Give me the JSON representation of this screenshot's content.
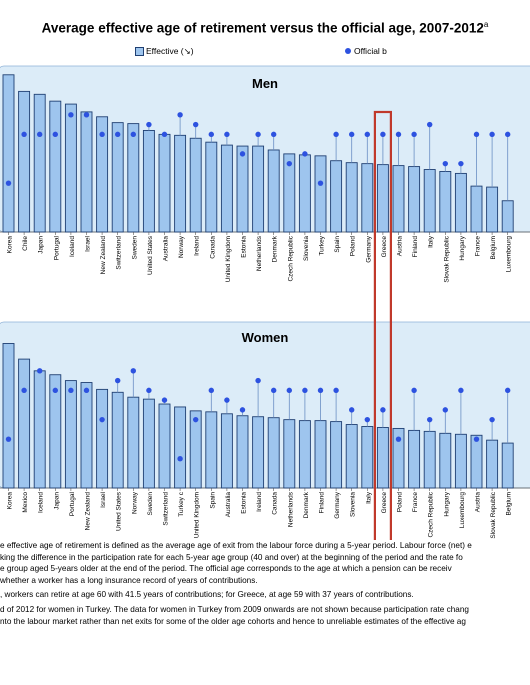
{
  "title": "Average effective age of retirement versus the official age, 2007-2012",
  "title_sup": "a",
  "legend": {
    "effective": "Effective (↘)",
    "official": "Official b"
  },
  "colors": {
    "bar": "#9ec5ee",
    "bar_stroke": "#1f3f72",
    "dot": "#2d52e0",
    "panel_bg": "#dcecf8",
    "highlight": "#c0392b"
  },
  "chart_data": [
    {
      "type": "bar",
      "title": "Men",
      "ylim": [
        55,
        72
      ],
      "highlight": "Greece",
      "categories": [
        "Korea",
        "Chile",
        "Japan",
        "Portugal",
        "Iceland",
        "Israel",
        "New Zealand",
        "Switzerland",
        "Sweden",
        "United States",
        "Australia",
        "Norway",
        "Ireland",
        "Canada",
        "United Kingdom",
        "Estonia",
        "Netherlands",
        "Denmark",
        "Czech Republic",
        "Slovenia",
        "Turkey",
        "Spain",
        "Poland",
        "Germany",
        "Greece",
        "Austria",
        "Finland",
        "Italy",
        "Slovak Republic",
        "Hungary",
        "France",
        "Belgium",
        "Luxembourg"
      ],
      "series": [
        {
          "values": [
            71.1,
            69.4,
            69.1,
            68.4,
            68.1,
            67.3,
            66.8,
            66.2,
            66.1,
            65.4,
            65.0,
            64.9,
            64.6,
            64.2,
            63.9,
            63.8,
            63.8,
            63.4,
            63.0,
            62.9,
            62.8,
            62.3,
            62.1,
            62.0,
            61.9,
            61.8,
            61.7,
            61.4,
            61.2,
            61.0,
            59.7,
            59.6,
            58.2
          ]
        },
        {
          "values": [
            60.0,
            65.0,
            65.0,
            65.0,
            67.0,
            67.0,
            65.0,
            65.0,
            65.0,
            66.0,
            65.0,
            67.0,
            66.0,
            65.0,
            65.0,
            63.0,
            65.0,
            65.0,
            62.0,
            63.0,
            60.0,
            65.0,
            65.0,
            65.0,
            65.0,
            65.0,
            65.0,
            66.0,
            62.0,
            62.0,
            65.0,
            65.0,
            65.0
          ]
        }
      ]
    },
    {
      "type": "bar",
      "title": "Women",
      "ylim": [
        55,
        72
      ],
      "highlight": "Greece",
      "categories": [
        "Korea",
        "Mexico",
        "Iceland",
        "Japan",
        "Portugal",
        "New Zealand",
        "Israel",
        "United States",
        "Norway",
        "Sweden",
        "Switzerland",
        "Turkey c",
        "United Kingdom",
        "Spain",
        "Australia",
        "Estonia",
        "Ireland",
        "Canada",
        "Netherlands",
        "Denmark",
        "Finland",
        "Germany",
        "Slovenia",
        "Italy",
        "Greece",
        "Poland",
        "France",
        "Czech Republic",
        "Hungary",
        "Luxembourg",
        "Austria",
        "Slovak Republic",
        "Belgium"
      ],
      "series": [
        {
          "values": [
            69.8,
            68.2,
            67.0,
            66.6,
            66.0,
            65.8,
            65.1,
            64.8,
            64.3,
            64.1,
            63.6,
            63.3,
            62.9,
            62.8,
            62.6,
            62.4,
            62.3,
            62.2,
            62.0,
            61.9,
            61.9,
            61.8,
            61.5,
            61.3,
            61.2,
            61.1,
            60.9,
            60.8,
            60.6,
            60.5,
            60.4,
            59.9,
            59.6
          ]
        },
        {
          "values": [
            60.0,
            65.0,
            67.0,
            65.0,
            65.0,
            65.0,
            62.0,
            66.0,
            67.0,
            65.0,
            64.0,
            58.0,
            62.0,
            65.0,
            64.0,
            63.0,
            66.0,
            65.0,
            65.0,
            65.0,
            65.0,
            65.0,
            63.0,
            62.0,
            63.0,
            60.0,
            65.0,
            62.0,
            63.0,
            65.0,
            60.0,
            62.0,
            65.0
          ]
        }
      ]
    }
  ],
  "notes": [
    "e effective age of retirement is defined as the average age of exit from the labour force during a 5-year period. Labour force (net) e",
    "king the difference in the participation rate for each 5-year age group (40 and over) at the beginning of the period and the rate fo",
    "e group aged 5-years older at the end of the period. The official age corresponds to the age at which a pension can be receiv",
    " whether a worker has a long insurance record of years of contributions.",
    ", workers can retire at age 60 with 41.5 years of contributions; for Greece, at age 59 with 37 years of contributions.",
    "d of 2012 for women in Turkey. The data for women in Turkey from 2009 onwards are not shown because participation rate chang",
    "nto the labour market rather than net exits for some of the older age cohorts and hence to unreliable estimates of the effective ag"
  ]
}
